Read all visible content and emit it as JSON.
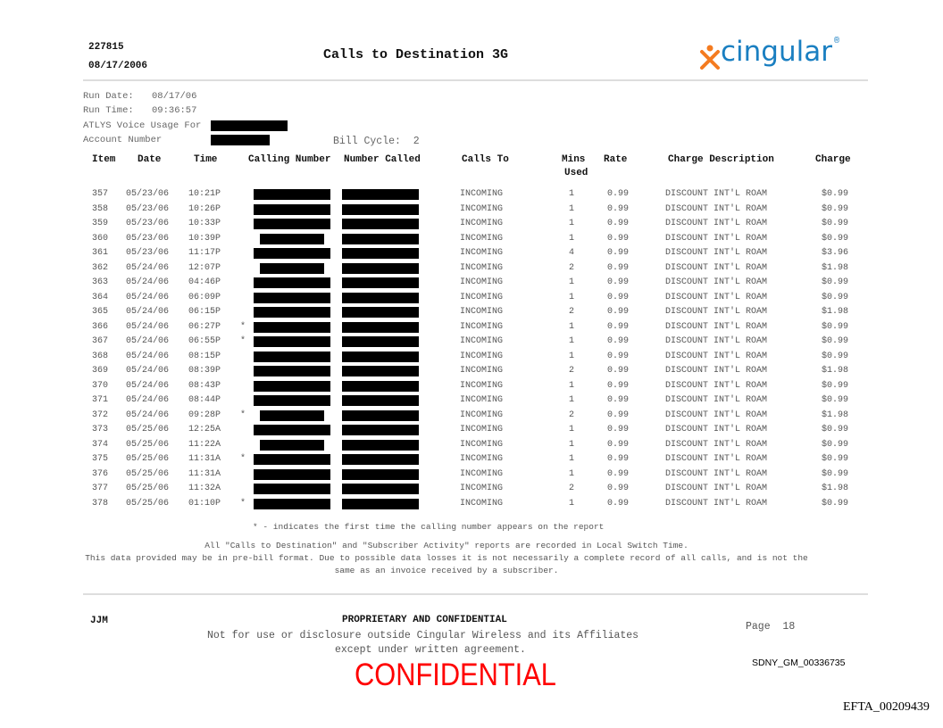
{
  "header": {
    "id": "227815",
    "date": "08/17/2006",
    "title": "Calls to Destination 3G",
    "logo_text": "cingular",
    "logo_colors": {
      "text": "#1a7fc1",
      "figure": "#f47b20"
    }
  },
  "meta": {
    "run_date_label": "Run Date:",
    "run_date": "08/17/06",
    "run_time_label": "Run Time:",
    "run_time": "09:36:57",
    "usage_for_label": "ATLYS Voice Usage For",
    "account_label": "Account Number",
    "bill_cycle_label": "Bill Cycle:",
    "bill_cycle": "2"
  },
  "columns": [
    "Item",
    "Date",
    "Time",
    "Calling Number",
    "Number Called",
    "Calls To",
    "Mins",
    "Used",
    "Rate",
    "Charge Description",
    "Charge"
  ],
  "rows": [
    {
      "item": "357",
      "date": "05/23/06",
      "time": "10:21P",
      "star": "",
      "calls_to": "INCOMING",
      "mins": "1",
      "rate": "0.99",
      "desc": "DISCOUNT INT'L ROAM",
      "charge": "$0.99"
    },
    {
      "item": "358",
      "date": "05/23/06",
      "time": "10:26P",
      "star": "",
      "calls_to": "INCOMING",
      "mins": "1",
      "rate": "0.99",
      "desc": "DISCOUNT INT'L ROAM",
      "charge": "$0.99"
    },
    {
      "item": "359",
      "date": "05/23/06",
      "time": "10:33P",
      "star": "",
      "calls_to": "INCOMING",
      "mins": "1",
      "rate": "0.99",
      "desc": "DISCOUNT INT'L ROAM",
      "charge": "$0.99"
    },
    {
      "item": "360",
      "date": "05/23/06",
      "time": "10:39P",
      "star": "",
      "calls_to": "INCOMING",
      "mins": "1",
      "rate": "0.99",
      "desc": "DISCOUNT INT'L ROAM",
      "charge": "$0.99"
    },
    {
      "item": "361",
      "date": "05/23/06",
      "time": "11:17P",
      "star": "",
      "calls_to": "INCOMING",
      "mins": "4",
      "rate": "0.99",
      "desc": "DISCOUNT INT'L ROAM",
      "charge": "$3.96"
    },
    {
      "item": "362",
      "date": "05/24/06",
      "time": "12:07P",
      "star": "",
      "calls_to": "INCOMING",
      "mins": "2",
      "rate": "0.99",
      "desc": "DISCOUNT INT'L ROAM",
      "charge": "$1.98"
    },
    {
      "item": "363",
      "date": "05/24/06",
      "time": "04:46P",
      "star": "",
      "calls_to": "INCOMING",
      "mins": "1",
      "rate": "0.99",
      "desc": "DISCOUNT INT'L ROAM",
      "charge": "$0.99"
    },
    {
      "item": "364",
      "date": "05/24/06",
      "time": "06:09P",
      "star": "",
      "calls_to": "INCOMING",
      "mins": "1",
      "rate": "0.99",
      "desc": "DISCOUNT INT'L ROAM",
      "charge": "$0.99"
    },
    {
      "item": "365",
      "date": "05/24/06",
      "time": "06:15P",
      "star": "",
      "calls_to": "INCOMING",
      "mins": "2",
      "rate": "0.99",
      "desc": "DISCOUNT INT'L ROAM",
      "charge": "$1.98"
    },
    {
      "item": "366",
      "date": "05/24/06",
      "time": "06:27P",
      "star": "*",
      "calls_to": "INCOMING",
      "mins": "1",
      "rate": "0.99",
      "desc": "DISCOUNT INT'L ROAM",
      "charge": "$0.99"
    },
    {
      "item": "367",
      "date": "05/24/06",
      "time": "06:55P",
      "star": "*",
      "calls_to": "INCOMING",
      "mins": "1",
      "rate": "0.99",
      "desc": "DISCOUNT INT'L ROAM",
      "charge": "$0.99"
    },
    {
      "item": "368",
      "date": "05/24/06",
      "time": "08:15P",
      "star": "",
      "calls_to": "INCOMING",
      "mins": "1",
      "rate": "0.99",
      "desc": "DISCOUNT INT'L ROAM",
      "charge": "$0.99"
    },
    {
      "item": "369",
      "date": "05/24/06",
      "time": "08:39P",
      "star": "",
      "calls_to": "INCOMING",
      "mins": "2",
      "rate": "0.99",
      "desc": "DISCOUNT INT'L ROAM",
      "charge": "$1.98"
    },
    {
      "item": "370",
      "date": "05/24/06",
      "time": "08:43P",
      "star": "",
      "calls_to": "INCOMING",
      "mins": "1",
      "rate": "0.99",
      "desc": "DISCOUNT INT'L ROAM",
      "charge": "$0.99"
    },
    {
      "item": "371",
      "date": "05/24/06",
      "time": "08:44P",
      "star": "",
      "calls_to": "INCOMING",
      "mins": "1",
      "rate": "0.99",
      "desc": "DISCOUNT INT'L ROAM",
      "charge": "$0.99"
    },
    {
      "item": "372",
      "date": "05/24/06",
      "time": "09:28P",
      "star": "*",
      "calls_to": "INCOMING",
      "mins": "2",
      "rate": "0.99",
      "desc": "DISCOUNT INT'L ROAM",
      "charge": "$1.98"
    },
    {
      "item": "373",
      "date": "05/25/06",
      "time": "12:25A",
      "star": "",
      "calls_to": "INCOMING",
      "mins": "1",
      "rate": "0.99",
      "desc": "DISCOUNT INT'L ROAM",
      "charge": "$0.99"
    },
    {
      "item": "374",
      "date": "05/25/06",
      "time": "11:22A",
      "star": "",
      "calls_to": "INCOMING",
      "mins": "1",
      "rate": "0.99",
      "desc": "DISCOUNT INT'L ROAM",
      "charge": "$0.99"
    },
    {
      "item": "375",
      "date": "05/25/06",
      "time": "11:31A",
      "star": "*",
      "calls_to": "INCOMING",
      "mins": "1",
      "rate": "0.99",
      "desc": "DISCOUNT INT'L ROAM",
      "charge": "$0.99"
    },
    {
      "item": "376",
      "date": "05/25/06",
      "time": "11:31A",
      "star": "",
      "calls_to": "INCOMING",
      "mins": "1",
      "rate": "0.99",
      "desc": "DISCOUNT INT'L ROAM",
      "charge": "$0.99"
    },
    {
      "item": "377",
      "date": "05/25/06",
      "time": "11:32A",
      "star": "",
      "calls_to": "INCOMING",
      "mins": "2",
      "rate": "0.99",
      "desc": "DISCOUNT INT'L ROAM",
      "charge": "$1.98"
    },
    {
      "item": "378",
      "date": "05/25/06",
      "time": "01:10P",
      "star": "*",
      "calls_to": "INCOMING",
      "mins": "1",
      "rate": "0.99",
      "desc": "DISCOUNT INT'L ROAM",
      "charge": "$0.99"
    }
  ],
  "notes": {
    "star_note": "* - indicates the first time the calling number appears on the report",
    "line1": "All \"Calls to Destination\" and \"Subscriber Activity\" reports are recorded in Local Switch Time.",
    "line2": "This data provided may be in pre-bill format. Due to possible data losses it is not necessarily a complete record of all calls, and is not the",
    "line3": "same as an invoice received by a subscriber."
  },
  "footer": {
    "initials": "JJM",
    "proprietary": "PROPRIETARY AND CONFIDENTIAL",
    "disclosure1": "Not for use or disclosure outside Cingular Wireless and its Affiliates",
    "disclosure2": "except under written agreement.",
    "page_label": "Page",
    "page_number": "18",
    "bates": "SDNY_GM_00336735",
    "stamp": "CONFIDENTIAL",
    "stamp_color": "#ff0000",
    "efta": "EFTA_00209439"
  }
}
